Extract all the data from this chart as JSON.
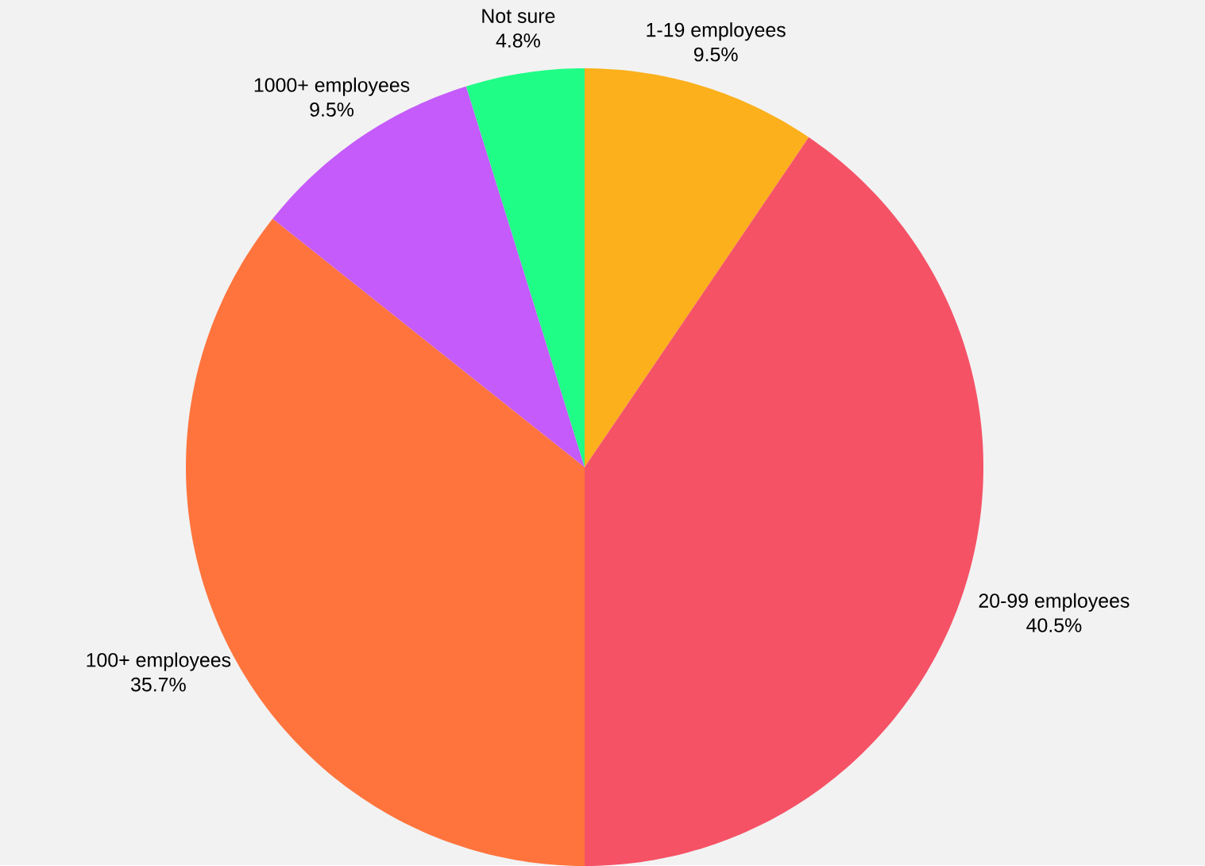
{
  "chart_data": {
    "type": "pie",
    "categories": [
      "1-19 employees",
      "20-99 employees",
      "100+ employees",
      "1000+ employees",
      "Not sure"
    ],
    "values": [
      9.5,
      40.5,
      35.7,
      9.5,
      4.8
    ],
    "value_labels": [
      "9.5%",
      "40.5%",
      "35.7%",
      "9.5%",
      "4.8%"
    ],
    "colors": [
      "#fbb01c",
      "#f55266",
      "#ff743d",
      "#c55bfa",
      "#20fd86"
    ]
  }
}
